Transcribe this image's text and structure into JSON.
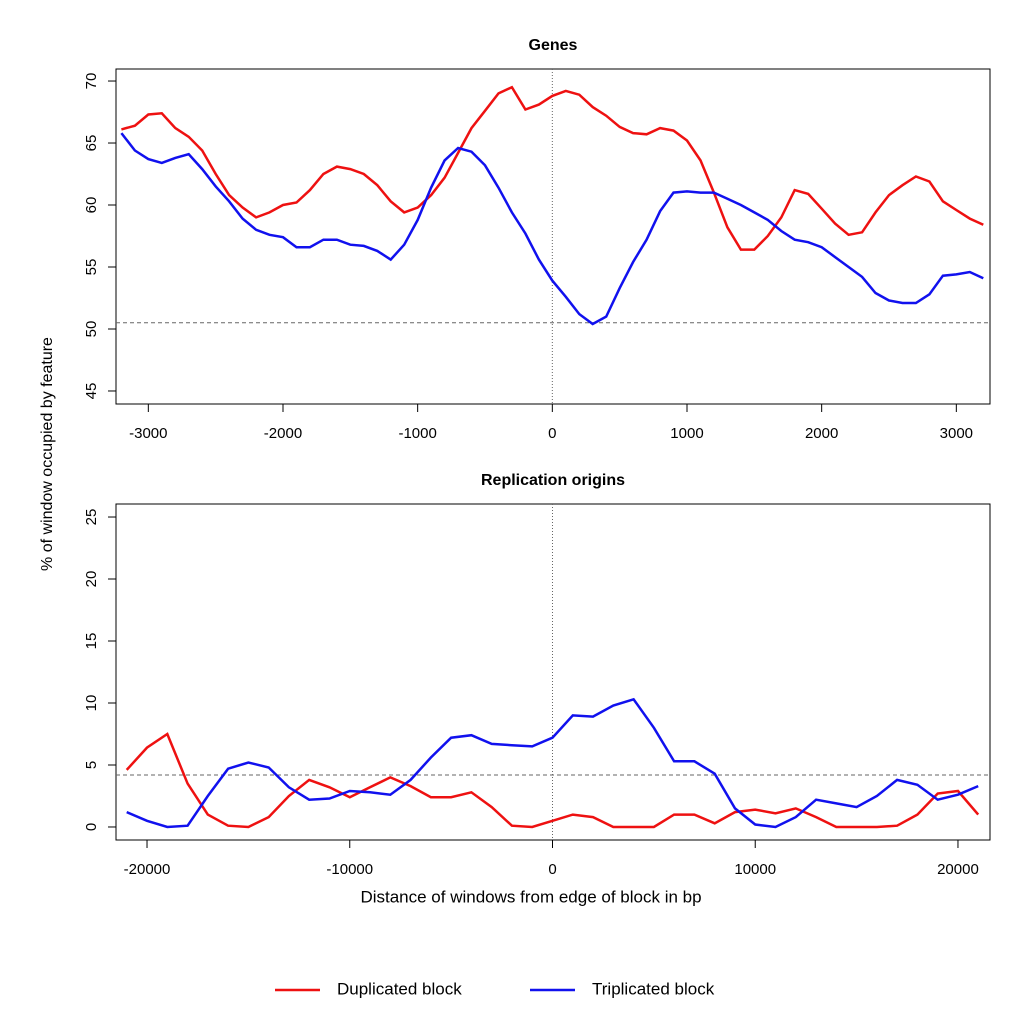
{
  "ylabel": "% of window occupied by feature",
  "xlabel": "Distance of windows from edge of block in bp",
  "chart_data": [
    {
      "type": "line",
      "title": "Genes",
      "x": [
        -3200,
        -3100,
        -3000,
        -2900,
        -2800,
        -2700,
        -2600,
        -2500,
        -2400,
        -2300,
        -2200,
        -2100,
        -2000,
        -1900,
        -1800,
        -1700,
        -1600,
        -1500,
        -1400,
        -1300,
        -1200,
        -1100,
        -1000,
        -900,
        -800,
        -700,
        -600,
        -500,
        -400,
        -300,
        -200,
        -100,
        0,
        100,
        200,
        300,
        400,
        500,
        600,
        700,
        800,
        900,
        1000,
        1100,
        1200,
        1300,
        1400,
        1500,
        1600,
        1700,
        1800,
        1900,
        2000,
        2100,
        2200,
        2300,
        2400,
        2500,
        2600,
        2700,
        2800,
        2900,
        3000,
        3100,
        3200
      ],
      "series": [
        {
          "name": "Duplicated block",
          "color": "#ee1111",
          "values": [
            66.1,
            66.4,
            67.3,
            67.4,
            66.2,
            65.5,
            64.4,
            62.5,
            60.8,
            59.8,
            59.0,
            59.4,
            60.0,
            60.2,
            61.2,
            62.5,
            63.1,
            62.9,
            62.5,
            61.6,
            60.3,
            59.4,
            59.8,
            60.8,
            62.2,
            64.2,
            66.2,
            67.6,
            69.0,
            69.5,
            67.7,
            68.1,
            68.8,
            69.2,
            68.9,
            67.9,
            67.2,
            66.3,
            65.8,
            65.7,
            66.2,
            66.0,
            65.2,
            63.6,
            61.0,
            58.2,
            56.4,
            56.4,
            57.5,
            59.0,
            61.2,
            60.9,
            59.7,
            58.5,
            57.6,
            57.8,
            59.4,
            60.8,
            61.6,
            62.3,
            61.9,
            60.3,
            59.6,
            58.9,
            58.4
          ]
        },
        {
          "name": "Triplicated block",
          "color": "#1111ee",
          "values": [
            65.8,
            64.4,
            63.7,
            63.4,
            63.8,
            64.1,
            62.9,
            61.5,
            60.3,
            58.9,
            58.0,
            57.6,
            57.4,
            56.6,
            56.6,
            57.2,
            57.2,
            56.8,
            56.7,
            56.3,
            55.6,
            56.8,
            58.8,
            61.4,
            63.6,
            64.6,
            64.3,
            63.2,
            61.4,
            59.4,
            57.7,
            55.6,
            53.9,
            52.6,
            51.2,
            50.4,
            51.0,
            53.3,
            55.4,
            57.2,
            59.5,
            61.0,
            61.1,
            61.0,
            61.0,
            60.5,
            60.0,
            59.4,
            58.8,
            57.9,
            57.2,
            57.0,
            56.6,
            55.8,
            55.0,
            54.2,
            52.9,
            52.3,
            52.1,
            52.1,
            52.8,
            54.3,
            54.4,
            54.6,
            54.1
          ]
        }
      ],
      "xlim": [
        -3240,
        3250
      ],
      "xticks": [
        -3000,
        -2000,
        -1000,
        0,
        1000,
        2000,
        3000
      ],
      "ylim": [
        43.95,
        70.97
      ],
      "yticks": [
        45,
        50,
        55,
        60,
        65,
        70
      ],
      "hline": 50.5,
      "vline": 0
    },
    {
      "type": "line",
      "title": "Replication origins",
      "x": [
        -21000,
        -20000,
        -19000,
        -18000,
        -17000,
        -16000,
        -15000,
        -14000,
        -13000,
        -12000,
        -11000,
        -10000,
        -9000,
        -8000,
        -7000,
        -6000,
        -5000,
        -4000,
        -3000,
        -2000,
        -1000,
        0,
        1000,
        2000,
        3000,
        4000,
        5000,
        6000,
        7000,
        8000,
        9000,
        10000,
        11000,
        12000,
        13000,
        14000,
        15000,
        16000,
        17000,
        18000,
        19000,
        20000,
        21000
      ],
      "series": [
        {
          "color": "#ee1111",
          "values": [
            4.6,
            6.4,
            7.5,
            3.5,
            1.0,
            0.1,
            0,
            0.8,
            2.5,
            3.8,
            3.2,
            2.4,
            3.2,
            4.0,
            3.3,
            2.4,
            2.4,
            2.8,
            1.6,
            0.1,
            0,
            0.5,
            1.0,
            0.8,
            0,
            0,
            0,
            1.0,
            1.0,
            0.3,
            1.2,
            1.4,
            1.1,
            1.5,
            0.8,
            0,
            0,
            0,
            0.1,
            1.0,
            2.7,
            2.9,
            1.0
          ]
        },
        {
          "color": "#1111ee",
          "values": [
            1.2,
            0.5,
            0,
            0.1,
            2.5,
            4.7,
            5.2,
            4.8,
            3.2,
            2.2,
            2.3,
            2.9,
            2.8,
            2.6,
            3.8,
            5.6,
            7.2,
            7.4,
            6.7,
            6.6,
            6.5,
            7.2,
            9.0,
            8.9,
            9.8,
            10.3,
            8.0,
            5.3,
            5.3,
            4.3,
            1.5,
            0.2,
            0,
            0.8,
            2.2,
            1.9,
            1.6,
            2.5,
            3.8,
            3.4,
            2.2,
            2.6,
            3.3
          ]
        }
      ],
      "xlim": [
        -21530,
        21580
      ],
      "xticks": [
        -20000,
        -10000,
        0,
        10000,
        20000
      ],
      "ylim": [
        -1.05,
        26.05
      ],
      "yticks": [
        0,
        5,
        10,
        15,
        20,
        25
      ],
      "hline": 4.19,
      "vline": 0
    }
  ]
}
